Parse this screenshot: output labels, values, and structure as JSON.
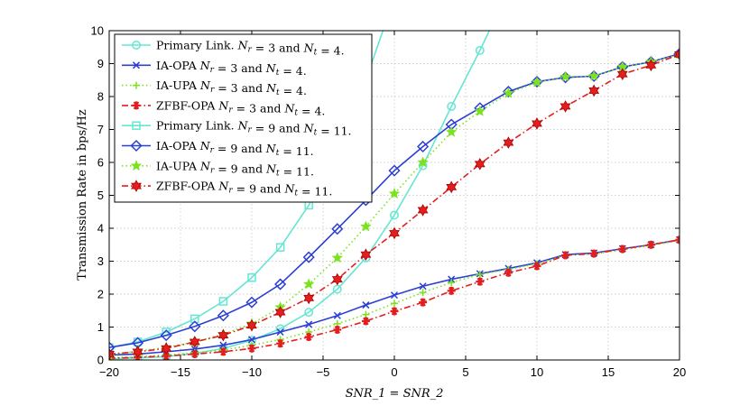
{
  "chart_data": {
    "type": "line",
    "xlabel": "SNR_1 = SNR_2",
    "ylabel": "Transmission Rate in bps/Hz",
    "xlim": [
      -20,
      20
    ],
    "ylim": [
      0,
      10
    ],
    "xticks": [
      -20,
      -15,
      -10,
      -5,
      0,
      5,
      10,
      15,
      20
    ],
    "yticks": [
      0,
      1,
      2,
      3,
      4,
      5,
      6,
      7,
      8,
      9,
      10
    ],
    "grid": true,
    "legend_position": "top-left",
    "series": [
      {
        "name": "Primary Link. N_r = 3 and N_t = 4.",
        "color": "#66e6d2",
        "marker": "circle",
        "dash": "solid",
        "x": [
          -20,
          -18,
          -16,
          -14,
          -12,
          -10,
          -8,
          -6,
          -4,
          -2,
          0,
          2,
          4,
          6,
          8
        ],
        "y": [
          0.03,
          0.06,
          0.1,
          0.2,
          0.35,
          0.6,
          0.95,
          1.45,
          2.15,
          3.1,
          4.4,
          5.9,
          7.7,
          9.4,
          11.2
        ]
      },
      {
        "name": "IA-OPA N_r = 3 and N_t = 4.",
        "color": "#2b3fd4",
        "marker": "x",
        "dash": "solid",
        "x": [
          -20,
          -18,
          -16,
          -14,
          -12,
          -10,
          -8,
          -6,
          -4,
          -2,
          0,
          2,
          4,
          6,
          8,
          10,
          12,
          14,
          16,
          18,
          20
        ],
        "y": [
          0.15,
          0.18,
          0.25,
          0.33,
          0.45,
          0.62,
          0.85,
          1.08,
          1.35,
          1.67,
          1.97,
          2.24,
          2.45,
          2.62,
          2.78,
          2.95,
          3.2,
          3.25,
          3.38,
          3.5,
          3.65
        ]
      },
      {
        "name": "IA-UPA N_r = 3 and N_t = 4.",
        "color": "#7be21e",
        "marker": "plus",
        "dash": "dotted",
        "x": [
          -20,
          -18,
          -16,
          -14,
          -12,
          -10,
          -8,
          -6,
          -4,
          -2,
          0,
          2,
          4,
          6,
          8,
          10,
          12,
          14,
          16,
          18,
          20
        ],
        "y": [
          0.07,
          0.1,
          0.15,
          0.22,
          0.3,
          0.45,
          0.62,
          0.85,
          1.1,
          1.38,
          1.72,
          2.05,
          2.35,
          2.6,
          2.75,
          2.92,
          3.18,
          3.22,
          3.35,
          3.48,
          3.63
        ]
      },
      {
        "name": "ZFBF-OPA N_r = 3 and N_t = 4.",
        "color": "#e21e1e",
        "marker": "asterisk",
        "dash": "dashdot",
        "x": [
          -20,
          -18,
          -16,
          -14,
          -12,
          -10,
          -8,
          -6,
          -4,
          -2,
          0,
          2,
          4,
          6,
          8,
          10,
          12,
          14,
          16,
          18,
          20
        ],
        "y": [
          0.05,
          0.08,
          0.12,
          0.18,
          0.25,
          0.35,
          0.5,
          0.7,
          0.92,
          1.18,
          1.48,
          1.75,
          2.1,
          2.38,
          2.65,
          2.85,
          3.18,
          3.23,
          3.37,
          3.5,
          3.65
        ]
      },
      {
        "name": "Primary Link. N_r = 9 and N_t = 11.",
        "color": "#66e6d2",
        "marker": "square",
        "dash": "solid",
        "x": [
          -20,
          -18,
          -16,
          -14,
          -12,
          -10,
          -8,
          -6,
          -4,
          -2,
          0
        ],
        "y": [
          0.38,
          0.55,
          0.85,
          1.25,
          1.78,
          2.5,
          3.42,
          4.7,
          6.4,
          8.5,
          11.0
        ]
      },
      {
        "name": "IA-OPA N_r = 9 and N_t = 11.",
        "color": "#2b3fd4",
        "marker": "diamond",
        "dash": "solid",
        "x": [
          -20,
          -18,
          -16,
          -14,
          -12,
          -10,
          -8,
          -6,
          -4,
          -2,
          0,
          2,
          4,
          6,
          8,
          10,
          12,
          14,
          16,
          18,
          20
        ],
        "y": [
          0.38,
          0.52,
          0.75,
          1.02,
          1.35,
          1.75,
          2.3,
          3.12,
          3.98,
          4.85,
          5.75,
          6.48,
          7.15,
          7.65,
          8.15,
          8.45,
          8.58,
          8.62,
          8.9,
          9.05,
          9.3
        ]
      },
      {
        "name": "IA-UPA N_r = 9 and N_t = 11.",
        "color": "#7be21e",
        "marker": "star",
        "dash": "dotted",
        "x": [
          -20,
          -18,
          -16,
          -14,
          -12,
          -10,
          -8,
          -6,
          -4,
          -2,
          0,
          2,
          4,
          6,
          8,
          10,
          12,
          14,
          16,
          18,
          20
        ],
        "y": [
          0.15,
          0.27,
          0.38,
          0.55,
          0.78,
          1.1,
          1.6,
          2.3,
          3.1,
          4.05,
          5.05,
          6.0,
          6.92,
          7.55,
          8.1,
          8.43,
          8.6,
          8.62,
          8.9,
          9.05,
          9.28
        ]
      },
      {
        "name": "ZFBF-OPA N_r = 9 and N_t = 11.",
        "color": "#e21e1e",
        "marker": "hexagram",
        "dash": "dashdot",
        "x": [
          -20,
          -18,
          -16,
          -14,
          -12,
          -10,
          -8,
          -6,
          -4,
          -2,
          0,
          2,
          4,
          6,
          8,
          10,
          12,
          14,
          16,
          18,
          20
        ],
        "y": [
          0.18,
          0.25,
          0.35,
          0.55,
          0.75,
          1.05,
          1.45,
          1.88,
          2.45,
          3.2,
          3.85,
          4.55,
          5.25,
          5.95,
          6.6,
          7.18,
          7.7,
          8.18,
          8.68,
          8.95,
          9.28
        ]
      }
    ]
  }
}
